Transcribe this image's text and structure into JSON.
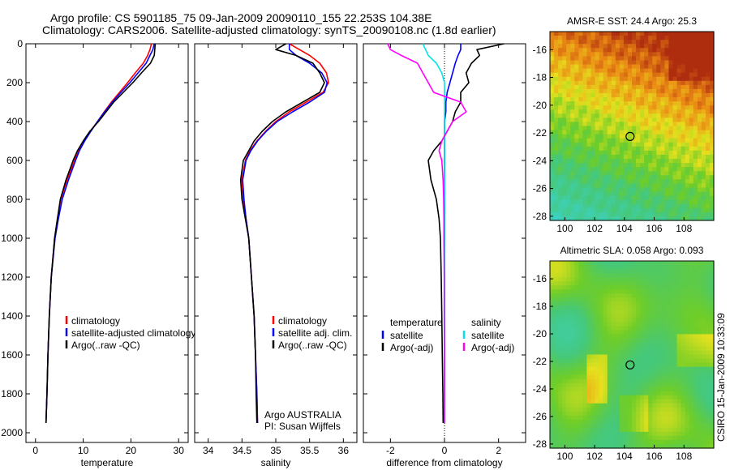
{
  "header": {
    "line1": "Argo profile: CS 5901185_75 09-Jan-2009 20090110_155 22.253S 104.38E",
    "line2": "Climatology: CARS2006. Satellite-adjusted climatology: synTS_20090108.nc (1.8d earlier)"
  },
  "side_label": "CSIRO 15-Jan-2009 10:33:09",
  "colors": {
    "climatology": "#ff0000",
    "satellite": "#0000ff",
    "argo": "#000000",
    "sat_salinity": "#00e5e5",
    "argo_salinity_diff": "#ff00ff"
  },
  "chart_data": [
    {
      "type": "line",
      "xlabel": "temperature",
      "ylim": [
        2050,
        0
      ],
      "xlim": [
        -2,
        32
      ],
      "xticks": [
        "0",
        "10",
        "20",
        "30"
      ],
      "yticks": [
        "0",
        "200",
        "400",
        "600",
        "800",
        "1000",
        "1200",
        "1400",
        "1600",
        "1800",
        "2000"
      ],
      "legend": [
        "climatology",
        "satellite-adjusted climatology",
        "Argo(..raw -QC)"
      ],
      "depth": [
        0,
        30,
        60,
        100,
        150,
        200,
        250,
        300,
        350,
        400,
        450,
        500,
        550,
        600,
        700,
        800,
        900,
        1000,
        1200,
        1400,
        1600,
        1800,
        1950
      ],
      "series": [
        {
          "name": "climatology",
          "color": "#ff0000",
          "values": [
            24.3,
            24.0,
            23.5,
            22.6,
            20.9,
            19.3,
            17.6,
            15.9,
            14.4,
            13.0,
            11.5,
            10.2,
            9.1,
            8.2,
            6.6,
            5.3,
            4.6,
            4.0,
            3.3,
            2.9,
            2.6,
            2.4,
            2.2
          ]
        },
        {
          "name": "satellite-adjusted climatology",
          "color": "#0000ff",
          "values": [
            24.9,
            24.6,
            24.0,
            23.2,
            21.5,
            19.8,
            17.9,
            16.1,
            14.5,
            13.0,
            11.6,
            10.3,
            9.2,
            8.4,
            6.9,
            5.6,
            4.8,
            4.1,
            3.3,
            2.9,
            2.6,
            2.4,
            2.2
          ]
        },
        {
          "name": "Argo(..raw -QC)",
          "color": "#000000",
          "values": [
            25.1,
            25.0,
            24.9,
            24.1,
            22.2,
            20.4,
            18.4,
            16.4,
            14.8,
            13.2,
            11.4,
            10.0,
            8.8,
            7.9,
            6.4,
            5.2,
            4.6,
            4.0,
            3.3,
            2.9,
            2.6,
            2.4,
            2.2
          ]
        }
      ]
    },
    {
      "type": "line",
      "xlabel": "salinity",
      "ylim": [
        2050,
        0
      ],
      "xlim": [
        33.8,
        36.2
      ],
      "xticks": [
        "34",
        "34.5",
        "35",
        "35.5",
        "36"
      ],
      "legend": [
        "climatology",
        "satellite adj. clim.",
        "Argo(..raw -QC)"
      ],
      "annotation": [
        "Argo AUSTRALIA",
        "PI: Susan Wijffels"
      ],
      "depth": [
        0,
        30,
        60,
        100,
        150,
        200,
        250,
        300,
        350,
        400,
        450,
        500,
        550,
        600,
        700,
        800,
        900,
        1000,
        1200,
        1400,
        1600,
        1800,
        1950
      ],
      "series": [
        {
          "name": "climatology",
          "color": "#ff0000",
          "values": [
            35.2,
            35.35,
            35.5,
            35.65,
            35.75,
            35.78,
            35.7,
            35.45,
            35.2,
            35.0,
            34.85,
            34.72,
            34.62,
            34.55,
            34.5,
            34.52,
            34.56,
            34.6,
            34.64,
            34.68,
            34.7,
            34.72,
            34.73
          ]
        },
        {
          "name": "satellite adj. clim.",
          "color": "#0000ff",
          "values": [
            35.2,
            35.2,
            35.3,
            35.5,
            35.68,
            35.76,
            35.72,
            35.5,
            35.25,
            35.02,
            34.86,
            34.73,
            34.63,
            34.56,
            34.51,
            34.53,
            34.56,
            34.6,
            34.64,
            34.68,
            34.7,
            34.72,
            34.73
          ]
        },
        {
          "name": "Argo(..raw -QC)",
          "color": "#000000",
          "values": [
            35.15,
            35.0,
            35.3,
            35.55,
            35.65,
            35.72,
            35.65,
            35.4,
            35.15,
            34.95,
            34.8,
            34.68,
            34.6,
            34.52,
            34.48,
            34.5,
            34.55,
            34.6,
            34.64,
            34.68,
            34.7,
            34.71,
            34.72
          ]
        }
      ]
    },
    {
      "type": "line",
      "xlabel": "difference from climatology",
      "ylim": [
        2050,
        0
      ],
      "xlim": [
        -3,
        3
      ],
      "xticks": [
        "-2",
        "0",
        "2"
      ],
      "legend": [
        "temperature",
        "satellite",
        "Argo(-adj)",
        "salinity",
        "satellite",
        "Argo(-adj)"
      ],
      "depth": [
        0,
        30,
        60,
        100,
        150,
        200,
        250,
        300,
        350,
        400,
        450,
        500,
        550,
        600,
        700,
        800,
        900,
        1000,
        1200,
        1400,
        1600,
        1800,
        1950
      ],
      "series": [
        {
          "name": "temperature satellite",
          "color": "#0000ff",
          "values": [
            0.6,
            0.6,
            0.5,
            0.4,
            0.3,
            0.2,
            0.1,
            0.05,
            0.05,
            0.0,
            0.0,
            0.0,
            0.0,
            0.0,
            0.0,
            0.0,
            0.0,
            0.0,
            0.0,
            0.0,
            0.0,
            0.0,
            0.0
          ]
        },
        {
          "name": "temperature Argo(-adj)",
          "color": "#000000",
          "values": [
            2.2,
            1.2,
            1.3,
            1.0,
            0.8,
            0.9,
            0.6,
            0.6,
            0.4,
            0.3,
            0.1,
            -0.1,
            -0.4,
            -0.6,
            -0.5,
            -0.3,
            -0.2,
            -0.15,
            -0.12,
            -0.1,
            -0.08,
            -0.06,
            -0.05
          ]
        },
        {
          "name": "salinity satellite",
          "color": "#00e5e5",
          "values": [
            -0.8,
            -0.7,
            -0.6,
            -0.3,
            -0.1,
            0.0,
            0.0,
            0.0,
            0.0,
            0.0,
            0.0,
            0.0,
            0.0,
            0.0,
            0.0,
            0.0,
            0.0,
            0.0,
            0.0,
            0.0,
            0.0,
            0.0,
            0.0
          ]
        },
        {
          "name": "salinity Argo(-adj)",
          "color": "#ff00ff",
          "values": [
            -2.1,
            -2.0,
            -1.6,
            -1.0,
            -0.8,
            -0.6,
            -0.4,
            0.6,
            0.8,
            0.3,
            0.1,
            -0.1,
            -0.2,
            -0.1,
            -0.05,
            -0.03,
            -0.02,
            -0.02,
            -0.01,
            -0.01,
            0.0,
            0.0,
            0.0
          ]
        }
      ]
    },
    {
      "type": "heatmap",
      "title": "AMSR-E SST: 24.4  Argo: 25.3",
      "xticks": [
        "100",
        "102",
        "104",
        "106",
        "108"
      ],
      "yticks": [
        "-16",
        "-18",
        "-20",
        "-22",
        "-24",
        "-26",
        "-28"
      ],
      "xlim": [
        99,
        110
      ],
      "ylim": [
        -28.3,
        -14.7
      ],
      "marker": {
        "lon": 104.38,
        "lat": -22.253
      }
    },
    {
      "type": "heatmap",
      "title": "Altimetric SLA: 0.058  Argo: 0.093",
      "xticks": [
        "100",
        "102",
        "104",
        "106",
        "108"
      ],
      "yticks": [
        "-16",
        "-18",
        "-20",
        "-22",
        "-24",
        "-26",
        "-28"
      ],
      "xlim": [
        99,
        110
      ],
      "ylim": [
        -28.3,
        -14.7
      ],
      "marker": {
        "lon": 104.38,
        "lat": -22.253
      }
    }
  ]
}
